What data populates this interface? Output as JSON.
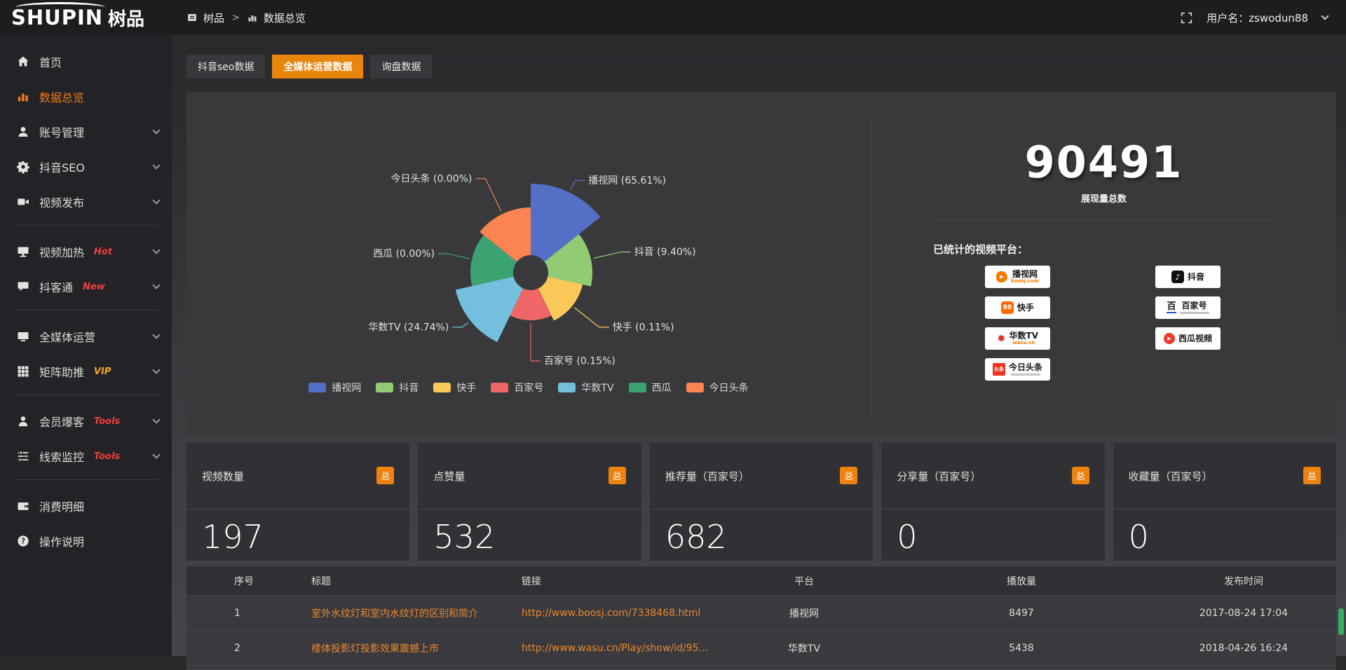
{
  "topbar": {
    "logo_text": "SHUPIN",
    "logo_suffix": "树品",
    "breadcrumb": {
      "root": "树品",
      "separator": ">",
      "current": "数据总览"
    },
    "username_text": "用户名：zswodun88"
  },
  "sidebar": {
    "items": [
      {
        "label": "首页",
        "icon": "home",
        "active": false,
        "expandable": false,
        "divider_after": false,
        "tag": "",
        "tag_color": ""
      },
      {
        "label": "数据总览",
        "icon": "chart",
        "active": true,
        "expandable": false,
        "divider_after": false,
        "tag": "",
        "tag_color": ""
      },
      {
        "label": "账号管理",
        "icon": "user",
        "active": false,
        "expandable": true,
        "divider_after": false,
        "tag": "",
        "tag_color": ""
      },
      {
        "label": "抖音SEO",
        "icon": "gear",
        "active": false,
        "expandable": true,
        "divider_after": false,
        "tag": "",
        "tag_color": ""
      },
      {
        "label": "视频发布",
        "icon": "video",
        "active": false,
        "expandable": true,
        "divider_after": true,
        "tag": "",
        "tag_color": ""
      },
      {
        "label": "视频加热",
        "icon": "monitor",
        "active": false,
        "expandable": true,
        "divider_after": false,
        "tag": "Hot",
        "tag_color": "#f03e3e"
      },
      {
        "label": "抖客通",
        "icon": "chat",
        "active": false,
        "expandable": true,
        "divider_after": true,
        "tag": "New",
        "tag_color": "#f03e3e"
      },
      {
        "label": "全媒体运营",
        "icon": "screen",
        "active": false,
        "expandable": true,
        "divider_after": false,
        "tag": "",
        "tag_color": ""
      },
      {
        "label": "矩阵助推",
        "icon": "grid",
        "active": false,
        "expandable": true,
        "divider_after": true,
        "tag": "VIP",
        "tag_color": "#f5a623"
      },
      {
        "label": "会员爆客",
        "icon": "person",
        "active": false,
        "expandable": true,
        "divider_after": false,
        "tag": "Tools",
        "tag_color": "#f03e3e"
      },
      {
        "label": "线索监控",
        "icon": "sliders",
        "active": false,
        "expandable": true,
        "divider_after": true,
        "tag": "Tools",
        "tag_color": "#f03e3e"
      },
      {
        "label": "消费明细",
        "icon": "wallet",
        "active": false,
        "expandable": false,
        "divider_after": false,
        "tag": "",
        "tag_color": ""
      },
      {
        "label": "操作说明",
        "icon": "help",
        "active": false,
        "expandable": false,
        "divider_after": false,
        "tag": "",
        "tag_color": ""
      }
    ]
  },
  "tabs": [
    {
      "label": "抖音seo数据",
      "active": false
    },
    {
      "label": "全媒体运营数据",
      "active": true
    },
    {
      "label": "询盘数据",
      "active": false
    }
  ],
  "chart_data": {
    "type": "pie",
    "style": "nightingale-rose-donut",
    "hole_radius": 25,
    "legend_position": "bottom",
    "items": [
      {
        "name": "播视网",
        "value_pct": 65.61,
        "label": "播视网 (65.61%)",
        "color": "#5470c6",
        "radius": 127
      },
      {
        "name": "抖音",
        "value_pct": 9.4,
        "label": "抖音 (9.40%)",
        "color": "#91cc75",
        "radius": 88
      },
      {
        "name": "快手",
        "value_pct": 0.11,
        "label": "快手 (0.11%)",
        "color": "#fac858",
        "radius": 76
      },
      {
        "name": "百家号",
        "value_pct": 0.15,
        "label": "百家号 (0.15%)",
        "color": "#ee6666",
        "radius": 68
      },
      {
        "name": "华数TV",
        "value_pct": 24.74,
        "label": "华数TV (24.74%)",
        "color": "#73c0de",
        "radius": 110
      },
      {
        "name": "西瓜",
        "value_pct": 0.0,
        "label": "西瓜 (0.00%)",
        "color": "#3ba272",
        "radius": 86
      },
      {
        "name": "今日头条",
        "value_pct": 0.0,
        "label": "今日头条 (0.00%)",
        "color": "#fc8452",
        "radius": 93
      }
    ]
  },
  "summary": {
    "total_value": "90491",
    "total_label": "展现量总数",
    "platforms_title": "已统计的视频平台：",
    "platform_boxes_left": [
      {
        "name": "播视网",
        "sub": "boosj.com",
        "icon": "boosj"
      },
      {
        "name": "快手",
        "sub": "",
        "icon": "kuaishou"
      },
      {
        "name": "华数TV",
        "sub": "wasu.cn",
        "icon": "wasu"
      },
      {
        "name": "今日头条",
        "sub": "",
        "icon": "toutiao"
      }
    ],
    "platform_boxes_right": [
      {
        "name": "抖音",
        "sub": "",
        "icon": "douyin"
      },
      {
        "name": "百家号",
        "sub": "",
        "icon": "baijia"
      },
      {
        "name": "西瓜视频",
        "sub": "",
        "icon": "xigua"
      }
    ]
  },
  "stat_cards": [
    {
      "title": "视频数量",
      "badge": "总",
      "value": "197"
    },
    {
      "title": "点赞量",
      "badge": "总",
      "value": "532"
    },
    {
      "title": "推荐量（百家号）",
      "badge": "总",
      "value": "682"
    },
    {
      "title": "分享量（百家号）",
      "badge": "总",
      "value": "0"
    },
    {
      "title": "收藏量（百家号）",
      "badge": "总",
      "value": "0"
    }
  ],
  "table": {
    "columns": [
      "序号",
      "标题",
      "链接",
      "平台",
      "播放量",
      "发布时间"
    ],
    "rows": [
      {
        "index": "1",
        "title": "室外水纹灯和室内水纹灯的区别和简介",
        "link": "http://www.boosj.com/7338468.html",
        "platform": "播视网",
        "views": "8497",
        "time": "2017-08-24 17:04"
      },
      {
        "index": "2",
        "title": "楼体投影灯投影效果震撼上市",
        "link": "http://www.wasu.cn/Play/show/id/952...",
        "platform": "华数TV",
        "views": "5438",
        "time": "2018-04-26 16:24"
      }
    ]
  },
  "colors": {
    "accent": "#ed820e",
    "link": "#e8872c",
    "panel": "#39393c",
    "sidebar_bg": "#232327",
    "topbar_bg": "#1d1d20"
  }
}
